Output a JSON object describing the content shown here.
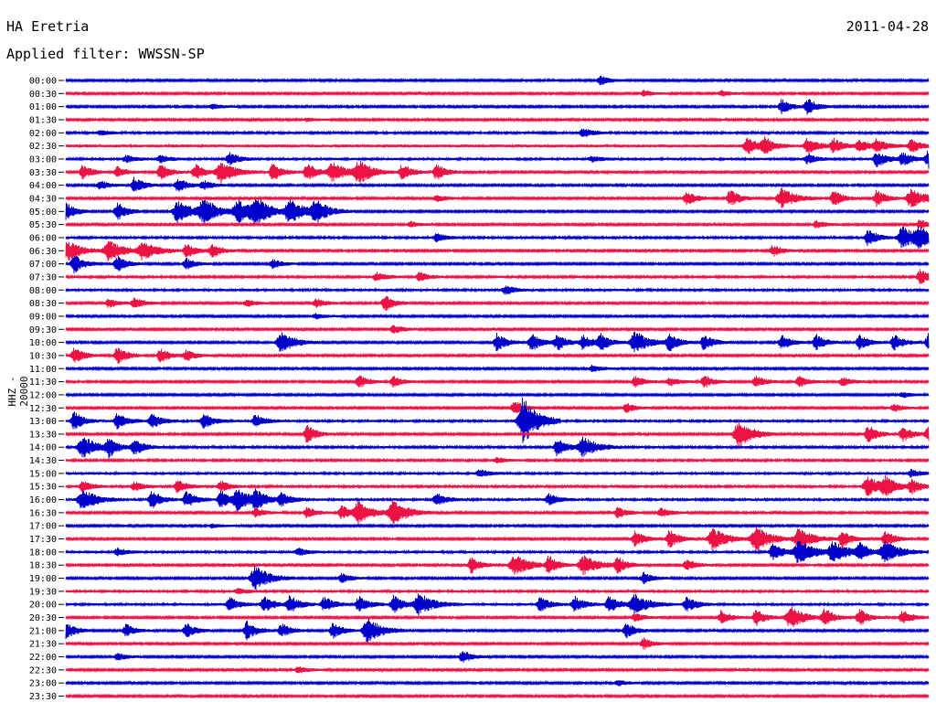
{
  "header": {
    "station": "HA Eretria",
    "date": "2011-04-28",
    "filter_label": "Applied filter: WWSSN-SP"
  },
  "chart_data": {
    "type": "line",
    "subtype": "helicorder",
    "ylabel": "HHZ - 20000",
    "row_labels": [
      "00:00",
      "00:30",
      "01:00",
      "01:30",
      "02:00",
      "02:30",
      "03:00",
      "03:30",
      "04:00",
      "04:30",
      "05:00",
      "05:30",
      "06:00",
      "06:30",
      "07:00",
      "07:30",
      "08:00",
      "08:30",
      "09:00",
      "09:30",
      "10:00",
      "10:30",
      "11:00",
      "11:30",
      "12:00",
      "12:30",
      "13:00",
      "13:30",
      "14:00",
      "14:30",
      "15:00",
      "15:30",
      "16:00",
      "16:30",
      "17:00",
      "17:30",
      "18:00",
      "18:30",
      "19:00",
      "19:30",
      "20:00",
      "20:30",
      "21:00",
      "21:30",
      "22:00",
      "22:30",
      "23:00",
      "23:30"
    ],
    "colors": [
      "#0000cc",
      "#ee1144"
    ],
    "baseline_noise": [
      1.0,
      1.0,
      1.0,
      1.0,
      1.1,
      1.4,
      1.2,
      1.0,
      1.0,
      1.0,
      1.0,
      1.0,
      1.1,
      1.0,
      1.0,
      1.1,
      1.2,
      1.0,
      1.0,
      1.0,
      1.0,
      1.0,
      1.0,
      1.0,
      1.0,
      1.0,
      1.2,
      1.0,
      1.1,
      1.1,
      1.2,
      1.1,
      1.2,
      1.0,
      1.0,
      1.0,
      1.2,
      1.0,
      1.0,
      1.2,
      1.2,
      1.0,
      1.0,
      1.0,
      1.0,
      1.0,
      1.0,
      1.0
    ],
    "events": [
      {
        "row": 0,
        "t": [
          0.62
        ],
        "a": [
          5
        ]
      },
      {
        "row": 1,
        "t": [
          0.67,
          0.76
        ],
        "a": [
          3,
          3
        ]
      },
      {
        "row": 2,
        "t": [
          0.17,
          0.83,
          0.86
        ],
        "a": [
          3,
          8,
          9
        ]
      },
      {
        "row": 3,
        "t": [
          0.28
        ],
        "a": [
          2
        ]
      },
      {
        "row": 4,
        "t": [
          0.04,
          0.6
        ],
        "a": [
          3,
          5
        ]
      },
      {
        "row": 5,
        "t": [
          0.79,
          0.81,
          0.86,
          0.89,
          0.92,
          0.94,
          0.98
        ],
        "a": [
          10,
          9,
          9,
          8,
          6,
          7,
          7
        ]
      },
      {
        "row": 6,
        "t": [
          0.07,
          0.11,
          0.19,
          0.61,
          0.86,
          0.94,
          0.97,
          1.0
        ],
        "a": [
          4,
          4,
          7,
          3,
          5,
          9,
          8,
          10
        ]
      },
      {
        "row": 7,
        "t": [
          0.02,
          0.06,
          0.11,
          0.15,
          0.18,
          0.24,
          0.28,
          0.31,
          0.34,
          0.39,
          0.43
        ],
        "a": [
          8,
          6,
          9,
          9,
          12,
          10,
          10,
          11,
          12,
          9,
          9
        ]
      },
      {
        "row": 8,
        "t": [
          0.04,
          0.08,
          0.13,
          0.16
        ],
        "a": [
          5,
          9,
          8,
          5
        ]
      },
      {
        "row": 9,
        "t": [
          0.43,
          0.72,
          0.77,
          0.83,
          0.89,
          0.94,
          0.98
        ],
        "a": [
          4,
          8,
          10,
          11,
          9,
          9,
          11
        ]
      },
      {
        "row": 10,
        "t": [
          0.0,
          0.06,
          0.13,
          0.16,
          0.2,
          0.22,
          0.26,
          0.29
        ],
        "a": [
          10,
          10,
          12,
          14,
          12,
          15,
          14,
          12
        ]
      },
      {
        "row": 11,
        "t": [
          0.4,
          0.87,
          0.99
        ],
        "a": [
          3,
          4,
          5
        ]
      },
      {
        "row": 12,
        "t": [
          0.43,
          0.93,
          0.97,
          0.99
        ],
        "a": [
          5,
          9,
          12,
          11
        ]
      },
      {
        "row": 13,
        "t": [
          0.0,
          0.05,
          0.09,
          0.14,
          0.17,
          0.82
        ],
        "a": [
          13,
          12,
          11,
          8,
          8,
          6
        ]
      },
      {
        "row": 14,
        "t": [
          0.01,
          0.06,
          0.14,
          0.24
        ],
        "a": [
          10,
          9,
          6,
          5
        ]
      },
      {
        "row": 15,
        "t": [
          0.36,
          0.41,
          0.99
        ],
        "a": [
          5,
          5,
          8
        ]
      },
      {
        "row": 16,
        "t": [
          0.51
        ],
        "a": [
          5
        ]
      },
      {
        "row": 17,
        "t": [
          0.05,
          0.08,
          0.21,
          0.29,
          0.37
        ],
        "a": [
          5,
          6,
          4,
          5,
          9
        ]
      },
      {
        "row": 18,
        "t": [
          0.29
        ],
        "a": [
          3
        ]
      },
      {
        "row": 19,
        "t": [
          0.38
        ],
        "a": [
          5
        ]
      },
      {
        "row": 20,
        "t": [
          0.25,
          0.5,
          0.54,
          0.57,
          0.6,
          0.62,
          0.66,
          0.7,
          0.74,
          0.83,
          0.87,
          0.92,
          0.96,
          1.0
        ],
        "a": [
          11,
          10,
          10,
          9,
          8,
          9,
          12,
          10,
          9,
          8,
          9,
          8,
          9,
          10
        ]
      },
      {
        "row": 21,
        "t": [
          0.01,
          0.06,
          0.11,
          0.14
        ],
        "a": [
          9,
          10,
          8,
          6
        ]
      },
      {
        "row": 22,
        "t": [
          0.61
        ],
        "a": [
          4
        ]
      },
      {
        "row": 23,
        "t": [
          0.34,
          0.38,
          0.66,
          0.7,
          0.74,
          0.8,
          0.85,
          0.9
        ],
        "a": [
          7,
          6,
          6,
          5,
          7,
          6,
          6,
          5
        ]
      },
      {
        "row": 24,
        "t": [
          0.97
        ],
        "a": [
          3
        ]
      },
      {
        "row": 25,
        "t": [
          0.52,
          0.65,
          0.96
        ],
        "a": [
          8,
          5,
          4
        ]
      },
      {
        "row": 26,
        "t": [
          0.01,
          0.06,
          0.1,
          0.16,
          0.22,
          0.53
        ],
        "a": [
          10,
          9,
          8,
          8,
          7,
          26
        ]
      },
      {
        "row": 27,
        "t": [
          0.28,
          0.78,
          0.93,
          0.97,
          1.0
        ],
        "a": [
          10,
          15,
          10,
          9,
          8
        ]
      },
      {
        "row": 28,
        "t": [
          0.02,
          0.05,
          0.08,
          0.57,
          0.6
        ],
        "a": [
          12,
          10,
          9,
          10,
          11
        ]
      },
      {
        "row": 29,
        "t": [
          0.5
        ],
        "a": [
          3
        ]
      },
      {
        "row": 30,
        "t": [
          0.48,
          0.98
        ],
        "a": [
          4,
          4
        ]
      },
      {
        "row": 31,
        "t": [
          0.02,
          0.08,
          0.13,
          0.18,
          0.93,
          0.95,
          0.98
        ],
        "a": [
          6,
          5,
          7,
          6,
          11,
          10,
          9
        ]
      },
      {
        "row": 32,
        "t": [
          0.02,
          0.1,
          0.14,
          0.18,
          0.2,
          0.22,
          0.25,
          0.43,
          0.56
        ],
        "a": [
          12,
          10,
          9,
          10,
          11,
          10,
          8,
          7,
          6
        ]
      },
      {
        "row": 33,
        "t": [
          0.22,
          0.28,
          0.32,
          0.34,
          0.38,
          0.64,
          0.69
        ],
        "a": [
          5,
          6,
          8,
          12,
          14,
          6,
          5
        ]
      },
      {
        "row": 34,
        "t": [
          0.17
        ],
        "a": [
          2
        ]
      },
      {
        "row": 35,
        "t": [
          0.66,
          0.7,
          0.75,
          0.8,
          0.85,
          0.9,
          0.95
        ],
        "a": [
          9,
          10,
          12,
          14,
          12,
          10,
          9
        ]
      },
      {
        "row": 36,
        "t": [
          0.06,
          0.27,
          0.82,
          0.85,
          0.89,
          0.92,
          0.95
        ],
        "a": [
          4,
          4,
          10,
          13,
          12,
          9,
          12
        ]
      },
      {
        "row": 37,
        "t": [
          0.47,
          0.52,
          0.56,
          0.6,
          0.64,
          0.72
        ],
        "a": [
          9,
          12,
          10,
          11,
          9,
          6
        ]
      },
      {
        "row": 38,
        "t": [
          0.22,
          0.32,
          0.67
        ],
        "a": [
          14,
          5,
          6
        ]
      },
      {
        "row": 39,
        "t": [
          0.2
        ],
        "a": [
          3
        ]
      },
      {
        "row": 40,
        "t": [
          0.19,
          0.23,
          0.26,
          0.3,
          0.34,
          0.38,
          0.41,
          0.55,
          0.59,
          0.63,
          0.66,
          0.72
        ],
        "a": [
          8,
          9,
          10,
          8,
          9,
          10,
          12,
          8,
          9,
          10,
          11,
          9
        ]
      },
      {
        "row": 41,
        "t": [
          0.66,
          0.76,
          0.8,
          0.84,
          0.88,
          0.92,
          0.97
        ],
        "a": [
          5,
          8,
          9,
          12,
          10,
          9,
          8
        ]
      },
      {
        "row": 42,
        "t": [
          0.0,
          0.07,
          0.14,
          0.21,
          0.25,
          0.31,
          0.35,
          0.65
        ],
        "a": [
          10,
          7,
          8,
          10,
          8,
          9,
          14,
          8
        ]
      },
      {
        "row": 43,
        "t": [
          0.67
        ],
        "a": [
          6
        ]
      },
      {
        "row": 44,
        "t": [
          0.06,
          0.46
        ],
        "a": [
          4,
          7
        ]
      },
      {
        "row": 45,
        "t": [
          0.27
        ],
        "a": [
          4
        ]
      },
      {
        "row": 46,
        "t": [
          0.64
        ],
        "a": [
          3
        ]
      },
      {
        "row": 47,
        "t": [],
        "a": []
      }
    ]
  }
}
